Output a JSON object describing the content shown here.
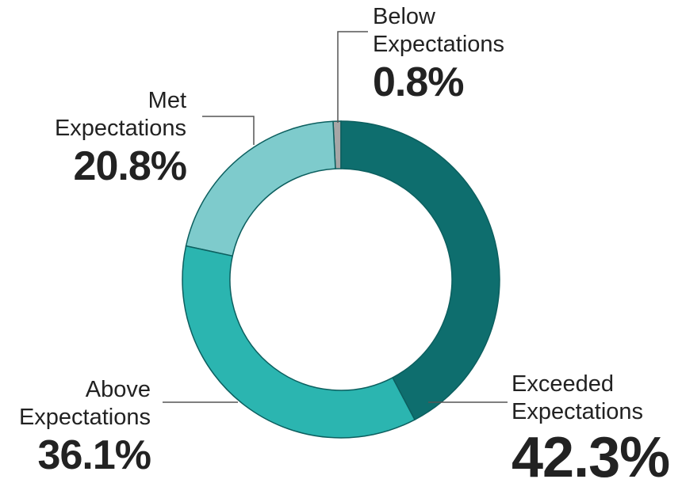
{
  "chart_data": {
    "type": "donut",
    "categories": [
      "Exceeded Expectations",
      "Above Expectations",
      "Met Expectations",
      "Below Expectations"
    ],
    "values": [
      42.3,
      36.1,
      20.8,
      0.8
    ],
    "value_labels": [
      "42.3%",
      "36.1%",
      "20.8%",
      "0.8%"
    ],
    "colors": [
      "#0e6e6e",
      "#2bb5b0",
      "#7ecbcc",
      "#a6a6a6"
    ]
  }
}
